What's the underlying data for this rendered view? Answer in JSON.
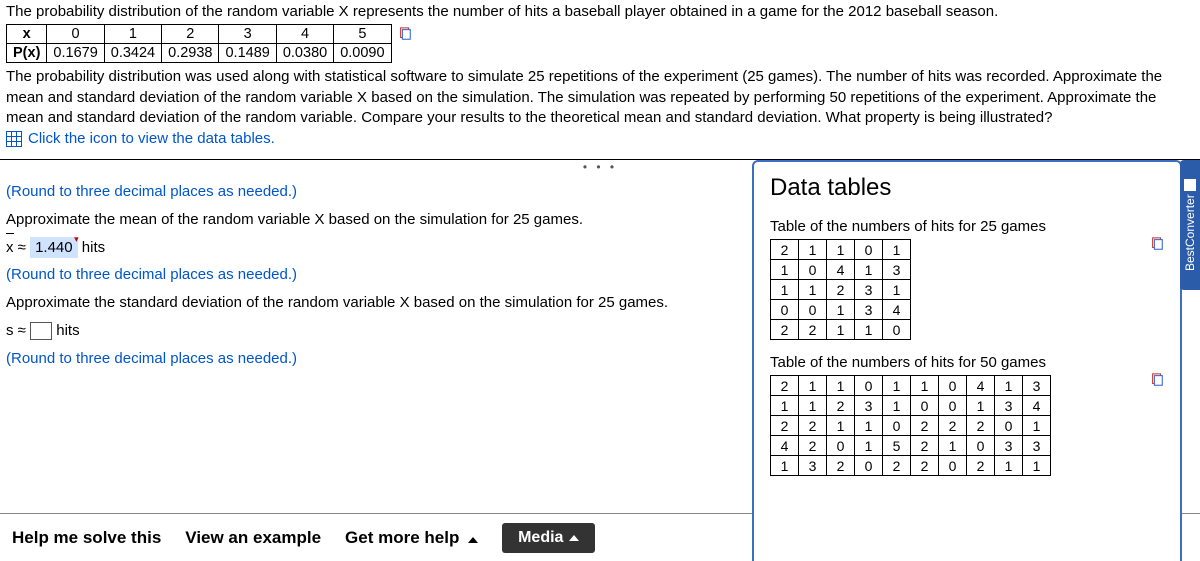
{
  "problem": {
    "p1": "The probability distribution of the random variable X represents the number of hits a baseball player obtained in a game for the 2012 baseball season.",
    "p2": "The probability distribution was used along with statistical software to simulate 25 repetitions of the experiment (25 games). The number of hits was recorded. Approximate the mean and standard deviation of the random variable X based on the simulation. The simulation was repeated by performing 50 repetitions of the experiment. Approximate the mean and standard deviation of the random variable. Compare your results to the theoretical mean and standard deviation. What property is being illustrated?",
    "icon_link": "Click the icon to view the data tables."
  },
  "ptable": {
    "row_header1": "x",
    "row_header2": "P(x)",
    "x": [
      "0",
      "1",
      "2",
      "3",
      "4",
      "5"
    ],
    "px": [
      "0.1679",
      "0.3424",
      "0.2938",
      "0.1489",
      "0.0380",
      "0.0090"
    ]
  },
  "answers": {
    "round_note": "(Round to three decimal places as needed.)",
    "mean_q": "Approximate the mean of the random variable X based on the simulation for 25 games.",
    "xbar_label": "x ≈",
    "xbar_value": "1.440",
    "xbar_units": "hits",
    "sd_q": "Approximate the standard deviation of the random variable X based on the simulation for 25 games.",
    "s_label": "s ≈",
    "s_units": "hits"
  },
  "bottombar": {
    "help": "Help me solve this",
    "view": "View an example",
    "more": "Get more help",
    "media": "Media"
  },
  "popup": {
    "title": "Data tables",
    "cap25": "Table of the numbers of hits for 25 games",
    "grid25": [
      [
        "2",
        "1",
        "1",
        "0",
        "1"
      ],
      [
        "1",
        "0",
        "4",
        "1",
        "3"
      ],
      [
        "1",
        "1",
        "2",
        "3",
        "1"
      ],
      [
        "0",
        "0",
        "1",
        "3",
        "4"
      ],
      [
        "2",
        "2",
        "1",
        "1",
        "0"
      ]
    ],
    "cap50": "Table of the numbers of hits for 50 games",
    "grid50": [
      [
        "2",
        "1",
        "1",
        "0",
        "1",
        "1",
        "0",
        "4",
        "1",
        "3"
      ],
      [
        "1",
        "1",
        "2",
        "3",
        "1",
        "0",
        "0",
        "1",
        "3",
        "4"
      ],
      [
        "2",
        "2",
        "1",
        "1",
        "0",
        "2",
        "2",
        "2",
        "0",
        "1"
      ],
      [
        "4",
        "2",
        "0",
        "1",
        "5",
        "2",
        "1",
        "0",
        "3",
        "3"
      ],
      [
        "1",
        "3",
        "2",
        "0",
        "2",
        "2",
        "0",
        "2",
        "1",
        "1"
      ]
    ]
  },
  "sidetab": "BestConverter",
  "colors": {
    "link": "#0055cc",
    "popup_border": "#3b6fc4",
    "highlight": "#cfe3ff",
    "media_bg": "#333333"
  }
}
